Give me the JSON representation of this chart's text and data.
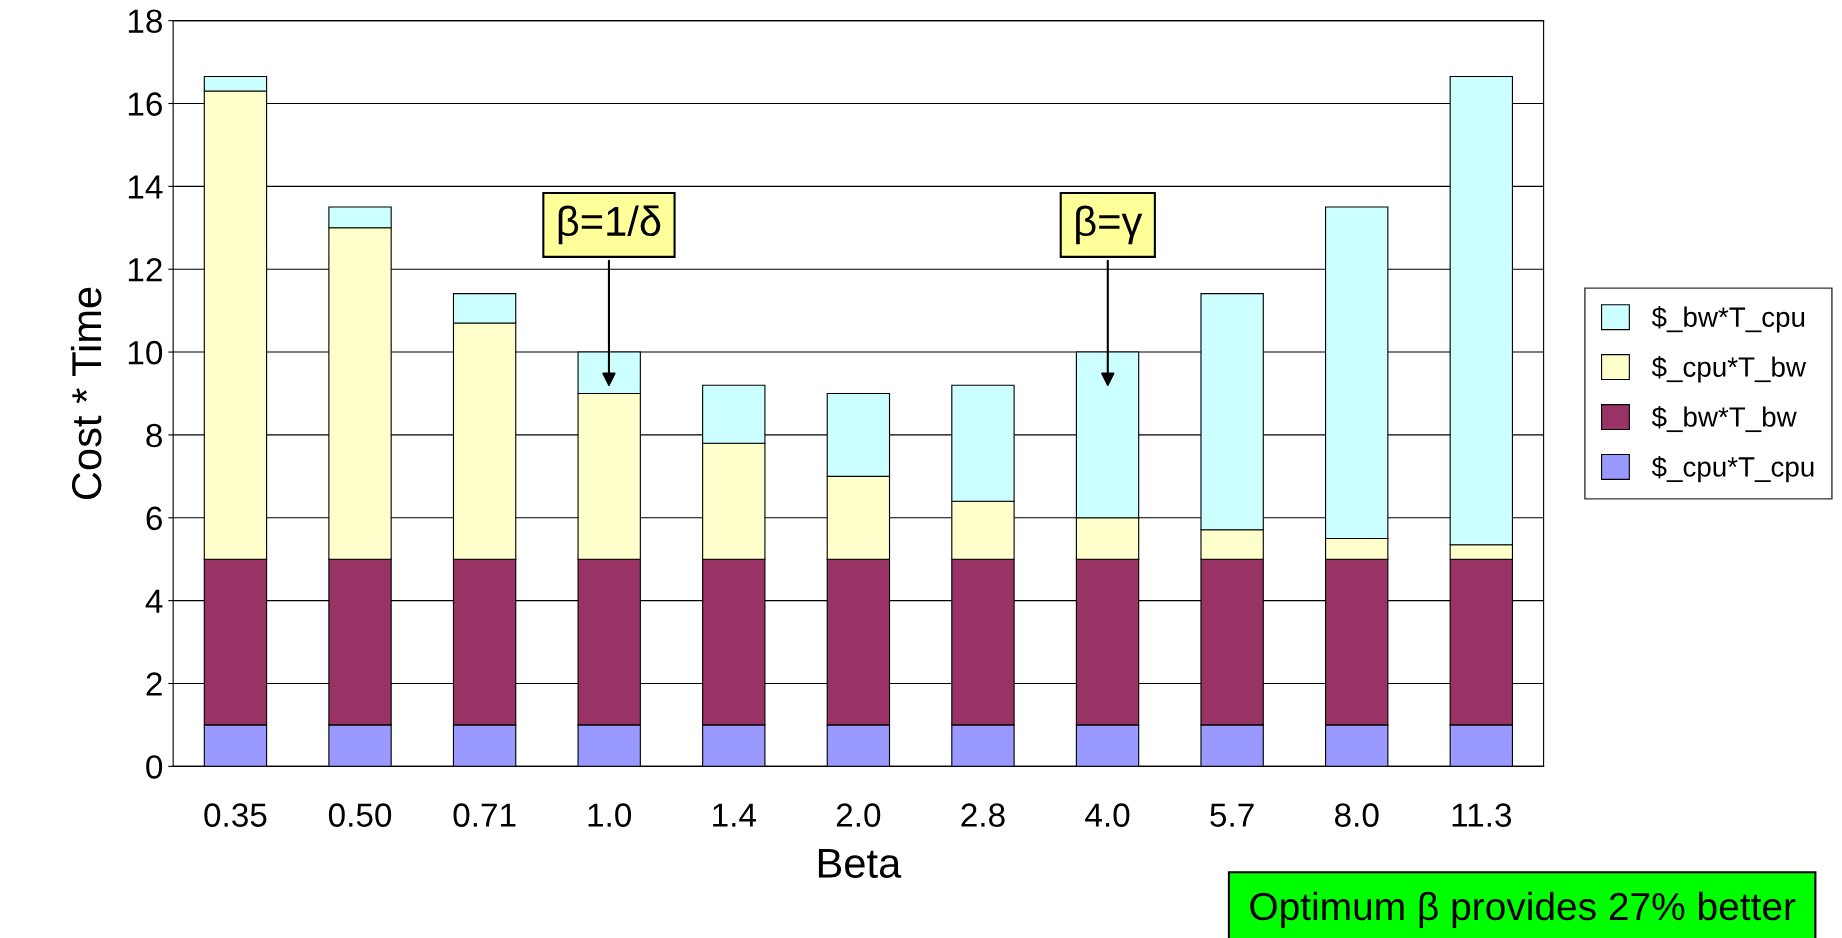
{
  "chart_data": {
    "type": "bar",
    "stacked": true,
    "xlabel": "Beta",
    "ylabel": "Cost * Time",
    "categories": [
      "0.35",
      "0.50",
      "0.71",
      "1.0",
      "1.4",
      "2.0",
      "2.8",
      "4.0",
      "5.7",
      "8.0",
      "11.3"
    ],
    "series": [
      {
        "name": "$_cpu*T_cpu",
        "color": "#9999ff",
        "values": [
          1,
          1,
          1,
          1,
          1,
          1,
          1,
          1,
          1,
          1,
          1
        ]
      },
      {
        "name": "$_bw*T_bw",
        "color": "#993366",
        "values": [
          4,
          4,
          4,
          4,
          4,
          4,
          4,
          4,
          4,
          4,
          4
        ]
      },
      {
        "name": "$_cpu*T_bw",
        "color": "#ffffcc",
        "values": [
          11.3,
          8.0,
          5.7,
          4.0,
          2.8,
          2.0,
          1.4,
          1.0,
          0.71,
          0.5,
          0.35
        ]
      },
      {
        "name": "$_bw*T_cpu",
        "color": "#ccffff",
        "values": [
          0.35,
          0.5,
          0.71,
          1.0,
          1.4,
          2.0,
          2.8,
          4.0,
          5.7,
          8.0,
          11.3
        ]
      }
    ],
    "ylim": [
      0,
      18
    ],
    "yticks": [
      0,
      2,
      4,
      6,
      8,
      10,
      12,
      14,
      16,
      18
    ],
    "grid": "y",
    "legend": "right",
    "annotations": [
      "β=1/δ",
      "β=γ",
      "Optimum β provides 27% better"
    ]
  }
}
